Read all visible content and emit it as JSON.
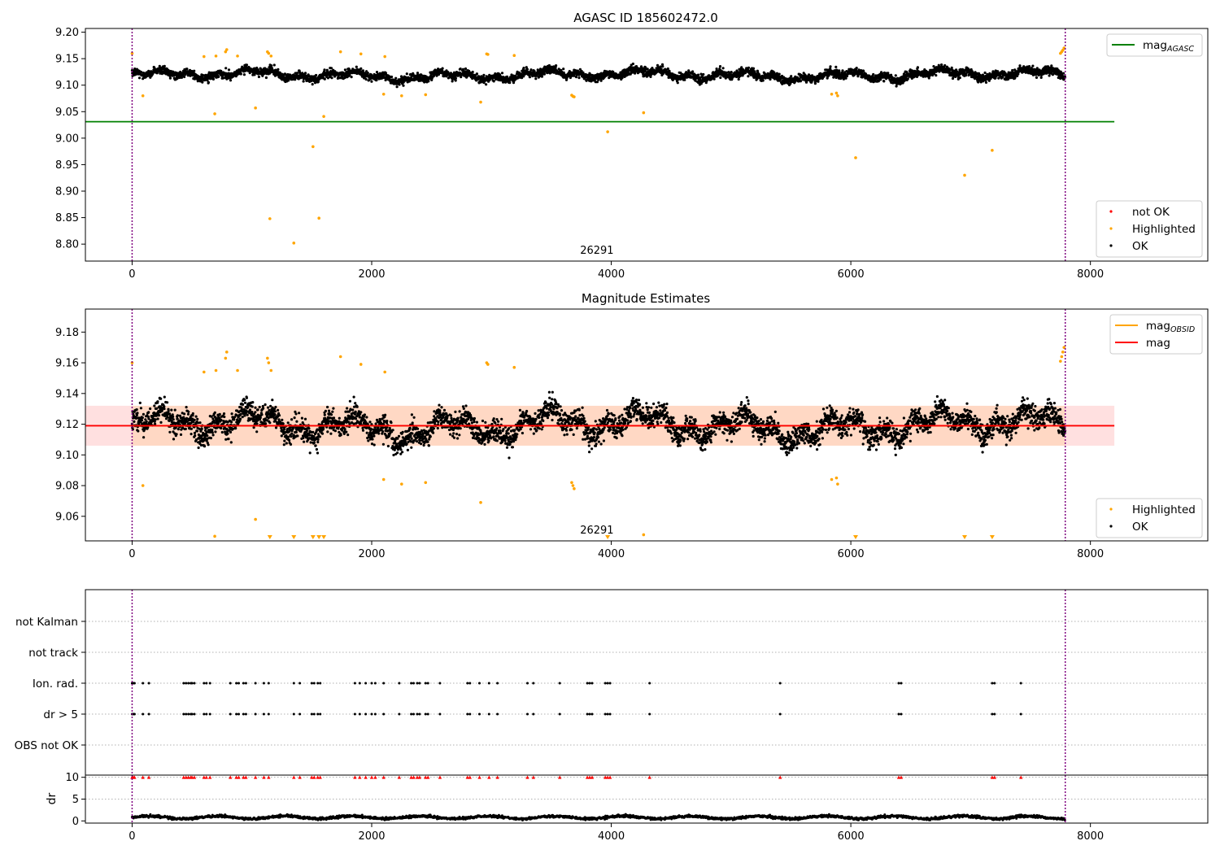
{
  "chart_data": [
    {
      "type": "scatter",
      "title": "AGASC ID 185602472.0",
      "xlabel": "",
      "ylabel": "",
      "xlim": [
        -390,
        8980
      ],
      "ylim": [
        8.768,
        9.207
      ],
      "x_ticks": [
        0,
        2000,
        4000,
        6000,
        8000
      ],
      "y_ticks": [
        8.8,
        8.85,
        8.9,
        8.95,
        9.0,
        9.05,
        9.1,
        9.15,
        9.2
      ],
      "tick_labels_y": [
        "8.80",
        "8.85",
        "8.90",
        "8.95",
        "9.00",
        "9.05",
        "9.10",
        "9.15",
        "9.20"
      ],
      "tick_labels_x": [
        "0",
        "2000",
        "4000",
        "6000",
        "8000"
      ],
      "obsid_annotation": "26291",
      "obsid_annotation_x": 3880,
      "obsid_boundaries": [
        0,
        7790
      ],
      "mag_agasc": 9.031,
      "mag_agasc_xrange": [
        -390,
        8200
      ],
      "ok_series": {
        "x_range": [
          0,
          7790
        ],
        "mean": 9.119,
        "scatter": 0.012
      },
      "highlighted_points": [
        [
          0,
          9.16
        ],
        [
          90,
          9.08
        ],
        [
          600,
          9.154
        ],
        [
          690,
          9.046
        ],
        [
          700,
          9.155
        ],
        [
          780,
          9.163
        ],
        [
          790,
          9.167
        ],
        [
          880,
          9.155
        ],
        [
          1030,
          9.057
        ],
        [
          1130,
          9.163
        ],
        [
          1140,
          9.16
        ],
        [
          1150,
          8.848
        ],
        [
          1160,
          9.155
        ],
        [
          1350,
          8.802
        ],
        [
          1510,
          8.984
        ],
        [
          1560,
          8.849
        ],
        [
          1600,
          9.041
        ],
        [
          1740,
          9.163
        ],
        [
          1910,
          9.159
        ],
        [
          2100,
          9.083
        ],
        [
          2110,
          9.154
        ],
        [
          2250,
          9.08
        ],
        [
          2450,
          9.082
        ],
        [
          2910,
          9.068
        ],
        [
          2960,
          9.159
        ],
        [
          2970,
          9.158
        ],
        [
          3190,
          9.156
        ],
        [
          3670,
          9.081
        ],
        [
          3680,
          9.079
        ],
        [
          3690,
          9.078
        ],
        [
          3970,
          9.012
        ],
        [
          4270,
          9.048
        ],
        [
          5840,
          9.083
        ],
        [
          5880,
          9.085
        ],
        [
          5890,
          9.08
        ],
        [
          6040,
          8.963
        ],
        [
          6950,
          8.93
        ],
        [
          7180,
          8.977
        ],
        [
          7750,
          9.16
        ],
        [
          7760,
          9.163
        ],
        [
          7770,
          9.166
        ],
        [
          7780,
          9.17
        ]
      ],
      "legend_upper": {
        "position": "upper-right",
        "entries": [
          {
            "label": "mag",
            "sub": "AGASC",
            "color": "#008000"
          }
        ]
      },
      "legend_lower": {
        "position": "lower-right",
        "entries": [
          {
            "label": "not OK",
            "color": "#ff0000"
          },
          {
            "label": "Highlighted",
            "color": "#ffa500"
          },
          {
            "label": "OK",
            "color": "#000000"
          }
        ]
      }
    },
    {
      "type": "scatter",
      "title": "Magnitude Estimates",
      "xlabel": "",
      "ylabel": "",
      "xlim": [
        -390,
        8980
      ],
      "ylim": [
        9.044,
        9.195
      ],
      "x_ticks": [
        0,
        2000,
        4000,
        6000,
        8000
      ],
      "y_ticks": [
        9.06,
        9.08,
        9.1,
        9.12,
        9.14,
        9.16,
        9.18
      ],
      "tick_labels_y": [
        "9.06",
        "9.08",
        "9.10",
        "9.12",
        "9.14",
        "9.16",
        "9.18"
      ],
      "tick_labels_x": [
        "0",
        "2000",
        "4000",
        "6000",
        "8000"
      ],
      "obsid_annotation": "26291",
      "obsid_annotation_x": 3880,
      "obsid_boundaries": [
        0,
        7790
      ],
      "mag": 9.119,
      "mag_band": [
        9.106,
        9.132
      ],
      "mag_obsid": 9.119,
      "mag_xrange": [
        -390,
        8200
      ],
      "ok_series": {
        "x_range": [
          0,
          7790
        ],
        "mean": 9.119,
        "scatter": 0.012
      },
      "highlighted_points": [
        [
          0,
          9.16
        ],
        [
          90,
          9.08
        ],
        [
          600,
          9.154
        ],
        [
          690,
          9.047
        ],
        [
          700,
          9.155
        ],
        [
          780,
          9.163
        ],
        [
          790,
          9.167
        ],
        [
          880,
          9.155
        ],
        [
          1030,
          9.058
        ],
        [
          1130,
          9.163
        ],
        [
          1140,
          9.16
        ],
        [
          1160,
          9.155
        ],
        [
          1740,
          9.164
        ],
        [
          1910,
          9.159
        ],
        [
          2100,
          9.084
        ],
        [
          2110,
          9.154
        ],
        [
          2250,
          9.081
        ],
        [
          2450,
          9.082
        ],
        [
          2910,
          9.069
        ],
        [
          2960,
          9.16
        ],
        [
          2970,
          9.159
        ],
        [
          3190,
          9.157
        ],
        [
          3670,
          9.082
        ],
        [
          3680,
          9.08
        ],
        [
          3690,
          9.078
        ],
        [
          4270,
          9.048
        ],
        [
          5840,
          9.084
        ],
        [
          5880,
          9.085
        ],
        [
          5890,
          9.081
        ],
        [
          7750,
          9.161
        ],
        [
          7760,
          9.164
        ],
        [
          7770,
          9.167
        ],
        [
          7780,
          9.17
        ]
      ],
      "below_range_markers_x": [
        1150,
        1350,
        1510,
        1560,
        1600,
        3970,
        6040,
        6950,
        7180
      ],
      "legend_upper": {
        "position": "upper-right",
        "entries": [
          {
            "label": "mag",
            "sub": "OBSID",
            "color": "#ffa500"
          },
          {
            "label": "mag",
            "sub": "",
            "color": "#ff0000"
          }
        ]
      },
      "legend_lower": {
        "position": "lower-right",
        "entries": [
          {
            "label": "Highlighted",
            "color": "#ffa500"
          },
          {
            "label": "OK",
            "color": "#000000"
          }
        ]
      }
    },
    {
      "type": "scatter",
      "title": "",
      "xlabel": "",
      "ylabel": "",
      "xlim": [
        -390,
        8980
      ],
      "categories": [
        "not Kalman",
        "not track",
        "Ion. rad.",
        "dr > 5",
        "OBS not OK"
      ],
      "flag_times": [
        0,
        10,
        20,
        90,
        140,
        430,
        450,
        470,
        490,
        500,
        520,
        600,
        620,
        650,
        820,
        870,
        890,
        930,
        950,
        1030,
        1100,
        1140,
        1350,
        1400,
        1500,
        1520,
        1550,
        1570,
        1860,
        1900,
        1950,
        2000,
        2030,
        2100,
        2230,
        2330,
        2350,
        2380,
        2400,
        2450,
        2470,
        2570,
        2800,
        2820,
        2900,
        2980,
        3050,
        3300,
        3350,
        3570,
        3800,
        3820,
        3840,
        3950,
        3970,
        3990,
        4320,
        5410,
        6400,
        6420,
        7180,
        7200,
        7420
      ],
      "flag_rows": [
        "Ion. rad.",
        "dr > 5"
      ],
      "obsid_boundaries": [
        0,
        7790
      ]
    },
    {
      "type": "line",
      "title": "",
      "xlabel": "",
      "ylabel": "dr",
      "xlim": [
        -390,
        8980
      ],
      "ylim": [
        -0.5,
        10.5
      ],
      "y_ticks": [
        0,
        5,
        10
      ],
      "tick_labels_y": [
        "0",
        "5",
        "10"
      ],
      "x_ticks": [
        0,
        2000,
        4000,
        6000,
        8000
      ],
      "tick_labels_x": [
        "0",
        "2000",
        "4000",
        "6000",
        "8000"
      ],
      "dr_series": {
        "x_range": [
          0,
          7790
        ],
        "mean": 0.8,
        "scatter": 0.4
      },
      "capped_value": 10,
      "obsid_boundaries": [
        0,
        7790
      ]
    }
  ]
}
